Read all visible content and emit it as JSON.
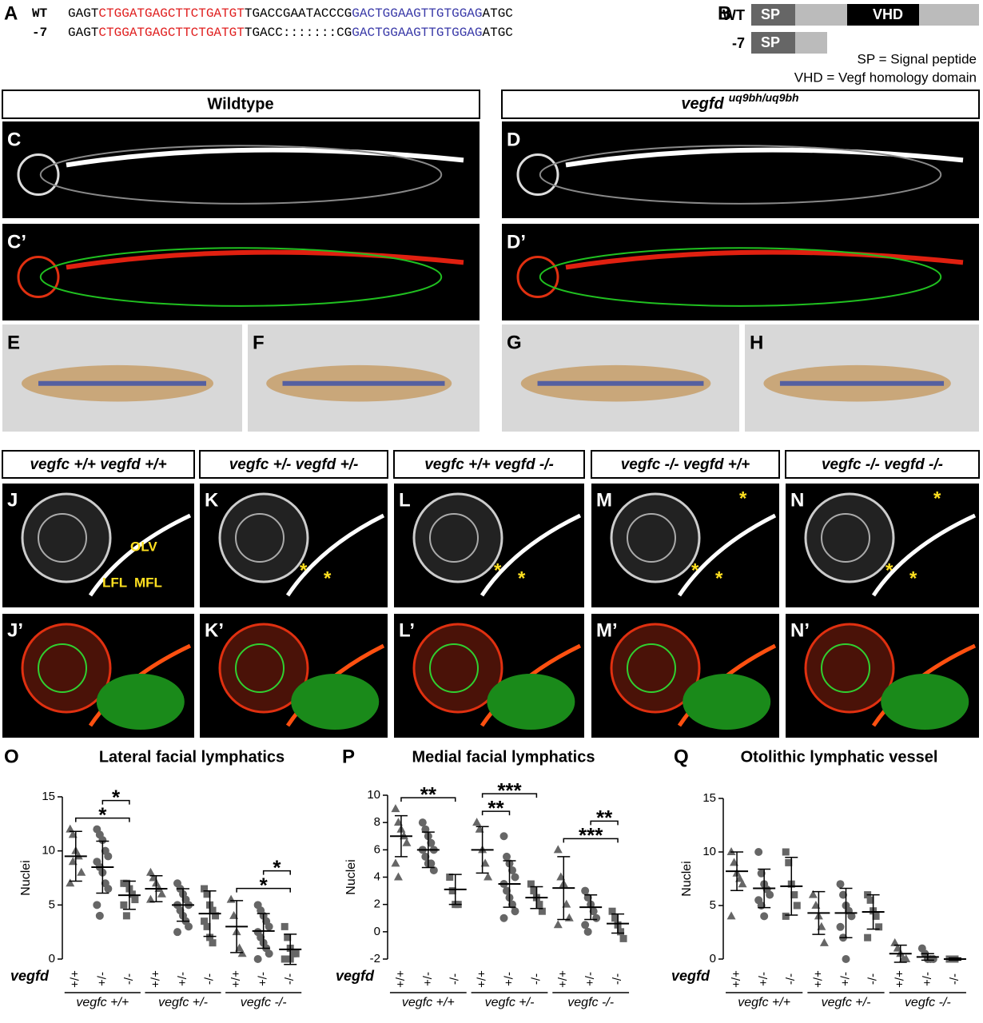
{
  "sequence_panel": {
    "label": "A",
    "rows": [
      {
        "name": "WT",
        "segments": [
          "GAGT",
          "CTGGATGAGCTTCTGATGT",
          "TGACCGAATACCCG",
          "GACTGGAAGTTGTGGAG",
          "ATGC"
        ]
      },
      {
        "name": "-7",
        "segments": [
          "GAGT",
          "CTGGATGAGCTTCTGATGT",
          "TGACC:::::::CG",
          "GACTGGAAGTTGTGGAG",
          "ATGC"
        ]
      }
    ]
  },
  "protein_panel": {
    "label": "B",
    "rows": [
      {
        "name": "WT",
        "domains": [
          "SP",
          "VHD"
        ]
      },
      {
        "name": "-7",
        "domains": [
          "SP"
        ]
      }
    ],
    "legend": [
      "SP = Signal peptide",
      "VHD = Vegf homology domain"
    ]
  },
  "genotype_headers": {
    "wildtype": "Wildtype",
    "mutant_gene": "vegfd",
    "mutant_allele": "uq9bh/uq9bh"
  },
  "image_panels": [
    "C",
    "D",
    "C’",
    "D’",
    "E",
    "F",
    "G",
    "H"
  ],
  "cross_headers": [
    "vegfc +/+ vegfd +/+",
    "vegfc +/- vegfd +/-",
    "vegfc +/+ vegfd -/-",
    "vegfc -/- vegfd +/+",
    "vegfc -/- vegfd -/-"
  ],
  "head_panels": [
    "J",
    "K",
    "L",
    "M",
    "N",
    "J’",
    "K’",
    "L’",
    "M’",
    "N’"
  ],
  "head_annotations": {
    "J": [
      "OLV",
      "LFL",
      "MFL"
    ],
    "K": [
      "*",
      "*"
    ],
    "L": [
      "*",
      "*"
    ],
    "M": [
      "*",
      "*",
      "*"
    ],
    "N": [
      "*",
      "*",
      "*"
    ]
  },
  "chart_data": [
    {
      "type": "dot",
      "panel": "O",
      "title": "Lateral facial lymphatics",
      "ylabel": "Nuclei",
      "xlabel": "vegfd",
      "color": "#666666",
      "categories": [
        "+/+",
        "+/-",
        "-/-",
        "+/+",
        "+/-",
        "-/-",
        "+/+",
        "+/-",
        "-/-"
      ],
      "group_labels": [
        "vegfc +/+",
        "vegfc +/-",
        "vegfc -/-"
      ],
      "markers": [
        "triangle",
        "circle",
        "square",
        "triangle",
        "circle",
        "square",
        "triangle",
        "circle",
        "square"
      ],
      "points": [
        [
          12,
          11.5,
          10,
          9.5,
          8,
          7,
          9
        ],
        [
          12,
          11.5,
          11,
          10,
          9.5,
          9,
          8.5,
          8,
          7,
          6.5,
          5,
          4
        ],
        [
          7,
          7,
          6.5,
          6,
          5.5,
          5,
          4
        ],
        [
          8,
          7.5,
          7,
          6.5,
          6,
          5.5
        ],
        [
          7,
          6.5,
          6,
          5.5,
          5,
          5,
          4.5,
          4,
          3.5,
          3,
          2.5
        ],
        [
          6.5,
          6,
          5,
          4.5,
          4,
          3.5,
          3,
          2,
          1.5
        ],
        [
          5.5,
          4,
          2.5,
          1,
          0.5
        ],
        [
          5,
          4.5,
          4,
          3.5,
          3,
          2.5,
          2,
          1.5,
          1,
          0.5,
          0
        ],
        [
          3,
          2,
          1,
          0.5,
          0.5,
          0,
          0,
          0
        ]
      ],
      "means": [
        9.5,
        8.5,
        5.9,
        6.5,
        5.0,
        4.2,
        3.0,
        2.6,
        0.9
      ],
      "sds": [
        2.3,
        2.4,
        1.3,
        1.2,
        1.5,
        2.1,
        2.4,
        1.6,
        1.4
      ],
      "ylim": [
        0,
        15
      ],
      "yticks": [
        0,
        5,
        10,
        15
      ],
      "significance": [
        {
          "from": 0,
          "to": 2,
          "label": "*"
        },
        {
          "from": 1,
          "to": 2,
          "label": "*"
        },
        {
          "from": 6,
          "to": 8,
          "label": "*"
        },
        {
          "from": 7,
          "to": 8,
          "label": "*"
        }
      ]
    },
    {
      "type": "dot",
      "panel": "P",
      "title": "Medial facial lymphatics",
      "ylabel": "Nuclei",
      "xlabel": "vegfd",
      "color": "#666666",
      "categories": [
        "+/+",
        "+/-",
        "-/-",
        "+/+",
        "+/-",
        "-/-",
        "+/+",
        "+/-",
        "-/-"
      ],
      "group_labels": [
        "vegfc +/+",
        "vegfc +/-",
        "vegfc -/-"
      ],
      "markers": [
        "triangle",
        "circle",
        "square",
        "triangle",
        "circle",
        "square",
        "triangle",
        "circle",
        "square"
      ],
      "points": [
        [
          9,
          8,
          7.5,
          7,
          6.5,
          5,
          4
        ],
        [
          8,
          7.5,
          7,
          6.5,
          6,
          6,
          5.5,
          5,
          5,
          4.5
        ],
        [
          4,
          3,
          2,
          2
        ],
        [
          8,
          7.5,
          6,
          5,
          4
        ],
        [
          7,
          5.5,
          5,
          4.5,
          4,
          3.5,
          3,
          2.5,
          2,
          1.5,
          1
        ],
        [
          3.5,
          3,
          2.5,
          2,
          1.5
        ],
        [
          6,
          4,
          3.5,
          2,
          1,
          0.5
        ],
        [
          3,
          2.5,
          2,
          1.5,
          1,
          0.5,
          0
        ],
        [
          1.5,
          1,
          0.5,
          0,
          -0.5
        ]
      ],
      "means": [
        7,
        6,
        3.1,
        6,
        3.5,
        2.5,
        3.2,
        1.8,
        0.6
      ],
      "sds": [
        1.5,
        1.3,
        1.1,
        1.7,
        1.7,
        0.8,
        2.3,
        0.9,
        0.7
      ],
      "ylim": [
        -2,
        10
      ],
      "yticks": [
        -2,
        0,
        2,
        4,
        6,
        8,
        10
      ],
      "significance": [
        {
          "from": 0,
          "to": 2,
          "label": "**"
        },
        {
          "from": 3,
          "to": 4,
          "label": "**"
        },
        {
          "from": 3,
          "to": 5,
          "label": "***"
        },
        {
          "from": 6,
          "to": 8,
          "label": "***"
        },
        {
          "from": 7,
          "to": 8,
          "label": "**"
        }
      ]
    },
    {
      "type": "dot",
      "panel": "Q",
      "title": "Otolithic lymphatic vessel",
      "ylabel": "Nuclei",
      "xlabel": "vegfd",
      "color": "#666666",
      "categories": [
        "+/+",
        "+/-",
        "-/-",
        "+/+",
        "+/-",
        "-/-",
        "+/+",
        "+/-",
        "-/-"
      ],
      "group_labels": [
        "vegfc +/+",
        "vegfc +/-",
        "vegfc -/-"
      ],
      "markers": [
        "triangle",
        "circle",
        "square",
        "triangle",
        "circle",
        "square",
        "triangle",
        "circle",
        "square"
      ],
      "points": [
        [
          10,
          9,
          8,
          7.5,
          7,
          4
        ],
        [
          10,
          8,
          7,
          6.5,
          6,
          5.5,
          5,
          4
        ],
        [
          10,
          9,
          7,
          6,
          5,
          4
        ],
        [
          6,
          5,
          4,
          3,
          1.5
        ],
        [
          7,
          6,
          5,
          4.5,
          4,
          3,
          2,
          0
        ],
        [
          6,
          5.5,
          4.5,
          4,
          3,
          2
        ],
        [
          1.5,
          1,
          0.5,
          0,
          0
        ],
        [
          1,
          0.5,
          0,
          0,
          0
        ],
        [
          0,
          0,
          0
        ]
      ],
      "means": [
        8.2,
        6.6,
        6.8,
        4.3,
        4.3,
        4.4,
        0.5,
        0.2,
        0
      ],
      "sds": [
        1.8,
        1.8,
        2.7,
        2,
        2.3,
        1.6,
        0.8,
        0.3,
        0.1
      ],
      "ylim": [
        0,
        15
      ],
      "yticks": [
        0,
        5,
        10,
        15
      ],
      "significance": []
    }
  ]
}
